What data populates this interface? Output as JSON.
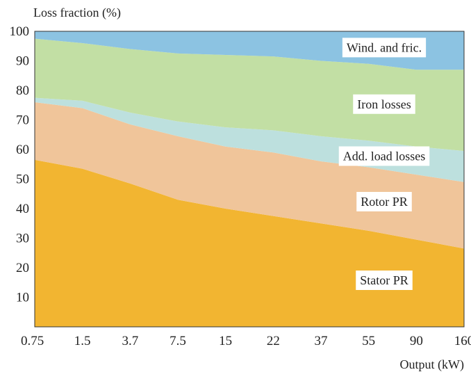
{
  "chart_data": {
    "type": "area",
    "stacked": true,
    "ylabel": "Loss fraction (%)",
    "xlabel": "Output (kW)",
    "categories": [
      "0.75",
      "1.5",
      "3.7",
      "7.5",
      "15",
      "22",
      "37",
      "55",
      "90",
      "160"
    ],
    "ylim": [
      0,
      100
    ],
    "yticks": [
      10,
      20,
      30,
      40,
      50,
      60,
      70,
      80,
      90,
      100
    ],
    "grid": false,
    "series": [
      {
        "name": "Stator PR",
        "color": "#f2b531",
        "values": [
          56.5,
          53.5,
          48.5,
          43,
          40,
          37.5,
          35,
          32.5,
          29.5,
          26.5
        ]
      },
      {
        "name": "Rotor PR",
        "color": "#f0c59a",
        "values": [
          19.5,
          20.5,
          20,
          21.5,
          21,
          21.5,
          21,
          21.5,
          22,
          22.5
        ]
      },
      {
        "name": "Add. load losses",
        "color": "#bde0de",
        "values": [
          1.5,
          2.5,
          4,
          5,
          6.5,
          7.5,
          8.5,
          9,
          9.5,
          10.5
        ]
      },
      {
        "name": "Iron losses",
        "color": "#c2dfa4",
        "values": [
          20,
          19.5,
          21.5,
          23,
          24.5,
          25,
          25.5,
          26,
          26,
          27.5
        ]
      },
      {
        "name": "Wind. and fric.",
        "color": "#8cc3e2",
        "values": [
          2.5,
          4,
          6,
          7.5,
          8,
          8.5,
          10,
          11,
          13,
          13
        ]
      }
    ]
  }
}
